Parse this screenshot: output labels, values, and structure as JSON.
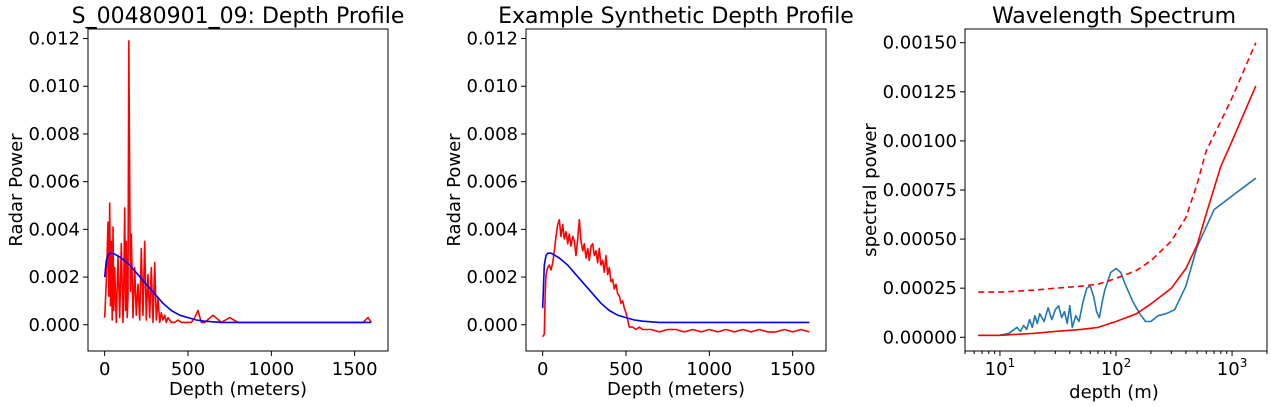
{
  "chart_data": [
    {
      "type": "line",
      "title": "S_00480901_09: Depth Profile",
      "xlabel": "Depth (meters)",
      "ylabel": "Radar Power",
      "xlim": [
        -100,
        1700
      ],
      "ylim": [
        -0.0011,
        0.0124
      ],
      "xscale": "linear",
      "xticks": [
        0,
        500,
        1000,
        1500
      ],
      "xtick_labels": [
        "0",
        "500",
        "1000",
        "1500"
      ],
      "yticks": [
        0,
        0.002,
        0.004,
        0.006,
        0.008,
        0.01,
        0.012
      ],
      "ytick_labels": [
        "0.000",
        "0.002",
        "0.004",
        "0.006",
        "0.008",
        "0.010",
        "0.012"
      ],
      "grid": false,
      "legend": "none",
      "series": [
        {
          "color": "#ff0000",
          "style": "solid",
          "x": [
            0,
            10,
            20,
            25,
            30,
            35,
            40,
            45,
            50,
            55,
            60,
            70,
            80,
            90,
            100,
            110,
            115,
            120,
            125,
            130,
            135,
            140,
            145,
            150,
            155,
            160,
            170,
            180,
            190,
            200,
            210,
            220,
            230,
            240,
            250,
            260,
            270,
            280,
            290,
            300,
            310,
            320,
            330,
            340,
            350,
            360,
            370,
            380,
            400,
            420,
            440,
            460,
            480,
            500,
            520,
            540,
            560,
            580,
            600,
            650,
            700,
            750,
            800,
            900,
            1000,
            1100,
            1200,
            1300,
            1400,
            1500,
            1550,
            1580,
            1600
          ],
          "y": [
            0.0003,
            0.0018,
            0.0043,
            0.0012,
            0.0051,
            0.0008,
            0.0035,
            0.0002,
            0.0041,
            0.0006,
            0.0024,
            0.0001,
            0.0029,
            0.0003,
            0.0034,
            0.0001,
            0.0018,
            0.0049,
            0.0006,
            0.0035,
            0.0003,
            0.0012,
            0.0119,
            0.0058,
            0.0014,
            0.0038,
            0.0003,
            0.0024,
            0.0004,
            0.0017,
            0.0002,
            0.0032,
            0.0004,
            0.0035,
            0.0002,
            0.0021,
            0.0003,
            0.0024,
            0.0001,
            0.0026,
            0.0002,
            0.0011,
            0.0001,
            0.0005,
            0.0002,
            0.0004,
            0.0001,
            0.0003,
            0.0001,
            0.0001,
            0.0002,
            0.0001,
            0.0001,
            0.0001,
            0.0001,
            0.0003,
            0.0006,
            0.0001,
            0.0001,
            0.0004,
            0.0001,
            0.0003,
            0.0001,
            0.0001,
            0.0001,
            0.0001,
            0.0001,
            0.0001,
            0.0001,
            0.0001,
            0.0001,
            0.0003,
            0.0001
          ]
        },
        {
          "color": "#0000ff",
          "style": "solid",
          "x": [
            0,
            10,
            20,
            30,
            50,
            75,
            100,
            150,
            200,
            250,
            300,
            350,
            400,
            450,
            500,
            550,
            600,
            700,
            800,
            1000,
            1200,
            1400,
            1600
          ],
          "y": [
            0.002,
            0.0027,
            0.0029,
            0.003,
            0.003,
            0.0029,
            0.0028,
            0.0025,
            0.0021,
            0.0017,
            0.0013,
            0.0009,
            0.0006,
            0.0004,
            0.0003,
            0.0002,
            0.00015,
            0.0001,
            0.0001,
            0.0001,
            0.0001,
            0.0001,
            0.0001
          ]
        }
      ]
    },
    {
      "type": "line",
      "title": "Example Synthetic Depth Profile",
      "xlabel": "Depth (meters)",
      "ylabel": "Radar Power",
      "xlim": [
        -100,
        1700
      ],
      "ylim": [
        -0.0011,
        0.0124
      ],
      "xscale": "linear",
      "xticks": [
        0,
        500,
        1000,
        1500
      ],
      "xtick_labels": [
        "0",
        "500",
        "1000",
        "1500"
      ],
      "yticks": [
        0,
        0.002,
        0.004,
        0.006,
        0.008,
        0.01,
        0.012
      ],
      "ytick_labels": [
        "0.000",
        "0.002",
        "0.004",
        "0.006",
        "0.008",
        "0.010",
        "0.012"
      ],
      "grid": false,
      "legend": "none",
      "series": [
        {
          "color": "#ff0000",
          "style": "solid",
          "x": [
            0,
            10,
            15,
            20,
            30,
            40,
            50,
            60,
            70,
            80,
            90,
            100,
            110,
            120,
            130,
            140,
            150,
            160,
            170,
            180,
            190,
            200,
            210,
            220,
            230,
            240,
            250,
            260,
            270,
            280,
            290,
            300,
            310,
            320,
            330,
            340,
            350,
            360,
            370,
            380,
            390,
            400,
            410,
            420,
            430,
            440,
            450,
            460,
            470,
            480,
            490,
            500,
            510,
            520,
            540,
            560,
            580,
            600,
            650,
            700,
            750,
            800,
            850,
            900,
            950,
            1000,
            1050,
            1100,
            1150,
            1200,
            1250,
            1300,
            1350,
            1400,
            1450,
            1500,
            1550,
            1600
          ],
          "y": [
            -0.0005,
            -0.0004,
            0.0013,
            0.0021,
            0.0024,
            0.0025,
            0.0023,
            0.0026,
            0.0031,
            0.0037,
            0.0042,
            0.0044,
            0.0037,
            0.0042,
            0.0036,
            0.0039,
            0.0034,
            0.0038,
            0.0033,
            0.0037,
            0.0035,
            0.0029,
            0.0036,
            0.0044,
            0.0035,
            0.0031,
            0.0034,
            0.0028,
            0.0032,
            0.0027,
            0.0033,
            0.0034,
            0.0029,
            0.0031,
            0.0026,
            0.0032,
            0.0025,
            0.0027,
            0.0022,
            0.0029,
            0.0021,
            0.0024,
            0.0018,
            0.0019,
            0.0015,
            0.0017,
            0.0013,
            0.0012,
            0.0009,
            0.001,
            0.0007,
            0.0005,
            0.0002,
            -0.0001,
            -0.0001,
            -0.0002,
            -0.0001,
            -0.0002,
            -0.0002,
            -0.0003,
            -0.0002,
            -0.0002,
            -0.0003,
            -0.0002,
            -0.0003,
            -0.0002,
            -0.0003,
            -0.0002,
            -0.0003,
            -0.0002,
            -0.0003,
            -0.0002,
            -0.0003,
            -0.0003,
            -0.0002,
            -0.0003,
            -0.0002,
            -0.0003
          ]
        },
        {
          "color": "#0000ff",
          "style": "solid",
          "x": [
            0,
            10,
            20,
            30,
            50,
            75,
            100,
            150,
            200,
            250,
            300,
            350,
            400,
            450,
            500,
            550,
            600,
            700,
            800,
            1000,
            1200,
            1400,
            1600
          ],
          "y": [
            0.0007,
            0.0025,
            0.0029,
            0.003,
            0.003,
            0.0029,
            0.0028,
            0.0025,
            0.0021,
            0.0017,
            0.0013,
            0.0009,
            0.0006,
            0.0004,
            0.0003,
            0.0002,
            0.00015,
            0.0001,
            0.0001,
            0.0001,
            0.0001,
            0.0001,
            0.0001
          ]
        }
      ]
    },
    {
      "type": "line",
      "title": "Wavelength Spectrum",
      "xlabel": "depth (m)",
      "ylabel": "spectral power",
      "xscale": "log",
      "xlim": [
        5,
        2000
      ],
      "ylim": [
        -7e-05,
        0.00157
      ],
      "xticks": [
        10,
        100,
        1000
      ],
      "xtick_labels": [
        {
          "base": "10",
          "exp": "1"
        },
        {
          "base": "10",
          "exp": "2"
        },
        {
          "base": "10",
          "exp": "3"
        }
      ],
      "yticks": [
        0,
        0.00025,
        0.0005,
        0.00075,
        0.001,
        0.00125,
        0.0015
      ],
      "ytick_labels": [
        "0.00000",
        "0.00025",
        "0.00050",
        "0.00075",
        "0.00100",
        "0.00125",
        "0.00150"
      ],
      "grid": false,
      "legend": "none",
      "series": [
        {
          "color": "#1f77b4",
          "style": "solid",
          "x": [
            6.5,
            8,
            10,
            12,
            14,
            15,
            16,
            17,
            18,
            19,
            20,
            21,
            22,
            24,
            26,
            28,
            30,
            32,
            34,
            36,
            38,
            40,
            42,
            45,
            48,
            52,
            56,
            60,
            64,
            68,
            72,
            76,
            80,
            90,
            100,
            110,
            120,
            140,
            160,
            180,
            200,
            230,
            270,
            320,
            400,
            500,
            700,
            1000,
            1600
          ],
          "y": [
            1e-05,
            1e-05,
            1e-05,
            2e-05,
            5e-05,
            3e-05,
            6e-05,
            4e-05,
            9e-05,
            5e-05,
            0.00011,
            7e-05,
            0.00012,
            8e-05,
            0.00015,
            9e-05,
            0.00014,
            0.00016,
            0.0001,
            0.00013,
            7e-05,
            0.00016,
            5e-05,
            0.00011,
            8e-05,
            0.00018,
            0.00025,
            0.00026,
            0.00021,
            0.00013,
            0.0001,
            0.00018,
            0.00024,
            0.00033,
            0.00035,
            0.00033,
            0.00027,
            0.00018,
            0.00012,
            8e-05,
            8e-05,
            0.00011,
            0.00012,
            0.00014,
            0.00026,
            0.00046,
            0.00065,
            0.00072,
            0.00081
          ]
        },
        {
          "color": "#ff0000",
          "style": "solid",
          "x": [
            6.5,
            10,
            20,
            30,
            50,
            70,
            100,
            150,
            200,
            300,
            400,
            500,
            600,
            800,
            1000,
            1600
          ],
          "y": [
            1e-05,
            1e-05,
            2e-05,
            3e-05,
            4e-05,
            5e-05,
            8e-05,
            0.00012,
            0.00017,
            0.00025,
            0.00035,
            0.00047,
            0.00063,
            0.00087,
            0.001,
            0.00128
          ]
        },
        {
          "color": "#ff0000",
          "style": "dashed",
          "x": [
            6.5,
            10,
            20,
            30,
            50,
            70,
            100,
            150,
            200,
            300,
            400,
            500,
            600,
            800,
            1000,
            1600
          ],
          "y": [
            0.00023,
            0.00023,
            0.00024,
            0.00025,
            0.00026,
            0.00027,
            0.0003,
            0.00034,
            0.00039,
            0.00049,
            0.00061,
            0.00078,
            0.00095,
            0.0011,
            0.00122,
            0.0015
          ]
        }
      ]
    }
  ]
}
